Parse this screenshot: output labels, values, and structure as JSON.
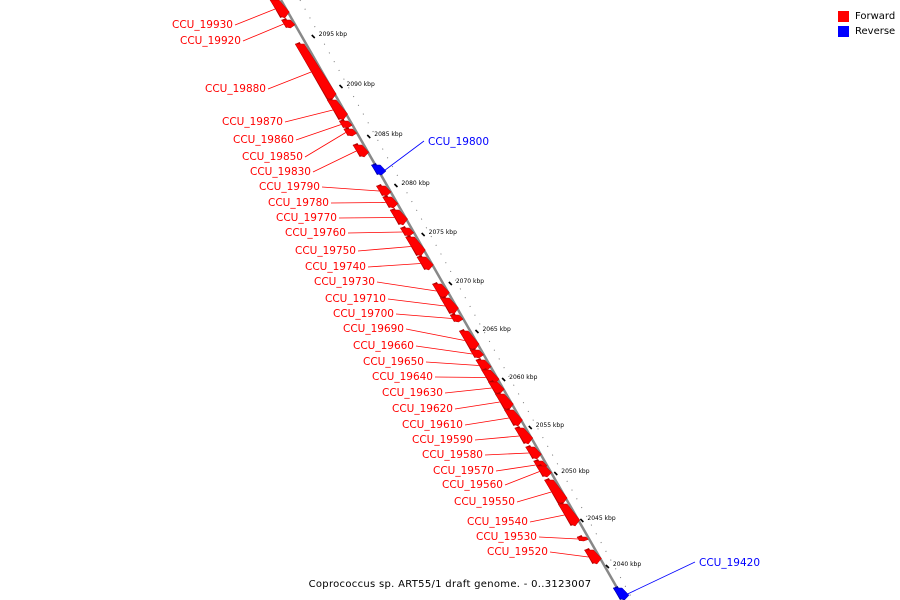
{
  "caption": "Coprococcus sp. ART55/1 draft genome. - 0..3123007",
  "legend": [
    {
      "label": "Forward",
      "color": "#ff0000"
    },
    {
      "label": "Reverse",
      "color": "#0000ff"
    }
  ],
  "colors": {
    "forward": "#ff0000",
    "forward_shade": "#b40000",
    "reverse": "#0000ff",
    "backbone": "#888888"
  },
  "ticks": [
    "2095 kbp",
    "2090 kbp",
    "2085 kbp",
    "2080 kbp",
    "2075 kbp",
    "2070 kbp",
    "2065 kbp",
    "2060 kbp",
    "2055 kbp",
    "2050 kbp",
    "2045 kbp",
    "2040 kbp"
  ],
  "genes": [
    {
      "label": "CCU_19930",
      "strand": "forward"
    },
    {
      "label": "CCU_19920",
      "strand": "forward"
    },
    {
      "label": "CCU_19880",
      "strand": "forward"
    },
    {
      "label": "CCU_19870",
      "strand": "forward"
    },
    {
      "label": "CCU_19860",
      "strand": "forward"
    },
    {
      "label": "CCU_19850",
      "strand": "forward"
    },
    {
      "label": "CCU_19830",
      "strand": "forward"
    },
    {
      "label": "CCU_19800",
      "strand": "reverse"
    },
    {
      "label": "CCU_19790",
      "strand": "forward"
    },
    {
      "label": "CCU_19780",
      "strand": "forward"
    },
    {
      "label": "CCU_19770",
      "strand": "forward"
    },
    {
      "label": "CCU_19760",
      "strand": "forward"
    },
    {
      "label": "CCU_19750",
      "strand": "forward"
    },
    {
      "label": "CCU_19740",
      "strand": "forward"
    },
    {
      "label": "CCU_19730",
      "strand": "forward"
    },
    {
      "label": "CCU_19710",
      "strand": "forward"
    },
    {
      "label": "CCU_19700",
      "strand": "forward"
    },
    {
      "label": "CCU_19690",
      "strand": "forward"
    },
    {
      "label": "CCU_19660",
      "strand": "forward"
    },
    {
      "label": "CCU_19650",
      "strand": "forward"
    },
    {
      "label": "CCU_19640",
      "strand": "forward"
    },
    {
      "label": "CCU_19630",
      "strand": "forward"
    },
    {
      "label": "CCU_19620",
      "strand": "forward"
    },
    {
      "label": "CCU_19610",
      "strand": "forward"
    },
    {
      "label": "CCU_19590",
      "strand": "forward"
    },
    {
      "label": "CCU_19580",
      "strand": "forward"
    },
    {
      "label": "CCU_19570",
      "strand": "forward"
    },
    {
      "label": "CCU_19560",
      "strand": "forward"
    },
    {
      "label": "CCU_19550",
      "strand": "forward"
    },
    {
      "label": "CCU_19540",
      "strand": "forward"
    },
    {
      "label": "CCU_19530",
      "strand": "forward"
    },
    {
      "label": "CCU_19520",
      "strand": "forward"
    },
    {
      "label": "CCU_19420",
      "strand": "reverse"
    }
  ]
}
